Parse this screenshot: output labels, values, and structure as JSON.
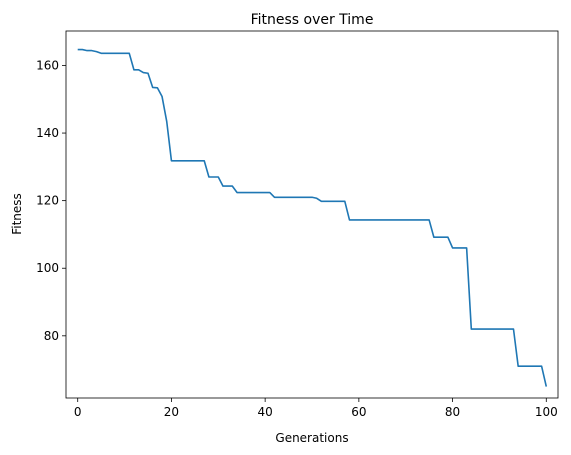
{
  "chart_data": {
    "type": "line",
    "title": "Fitness over Time",
    "xlabel": "Generations",
    "ylabel": "Fitness",
    "xlim": [
      -2.5,
      102.5
    ],
    "ylim": [
      61.6,
      170.2
    ],
    "xticks": [
      0,
      20,
      40,
      60,
      80,
      100
    ],
    "yticks": [
      80,
      100,
      120,
      140,
      160
    ],
    "grid": false,
    "line_color": "#1f77b4",
    "series": [
      {
        "x": [
          0,
          1,
          2,
          3,
          4,
          5,
          6,
          7,
          8,
          9,
          10,
          11,
          12,
          13,
          14,
          15,
          16,
          17,
          18,
          19,
          20,
          21,
          22,
          23,
          24,
          25,
          26,
          27,
          28,
          29,
          30,
          31,
          32,
          33,
          34,
          35,
          36,
          37,
          38,
          39,
          40,
          41,
          42,
          43,
          44,
          45,
          46,
          47,
          48,
          49,
          50,
          51,
          52,
          53,
          54,
          55,
          56,
          57,
          58,
          59,
          60,
          61,
          62,
          63,
          64,
          65,
          66,
          67,
          68,
          69,
          70,
          71,
          72,
          73,
          74,
          75,
          76,
          77,
          78,
          79,
          80,
          81,
          82,
          83,
          84,
          85,
          86,
          87,
          88,
          89,
          90,
          91,
          92,
          93,
          94,
          95,
          96,
          97,
          98,
          99,
          100
        ],
        "values": [
          164.7,
          164.7,
          164.4,
          164.4,
          164.1,
          163.6,
          163.6,
          163.6,
          163.6,
          163.6,
          163.6,
          163.6,
          158.7,
          158.7,
          157.9,
          157.7,
          153.5,
          153.4,
          150.8,
          143.4,
          131.8,
          131.8,
          131.8,
          131.8,
          131.8,
          131.8,
          131.8,
          131.8,
          127.0,
          127.0,
          127.0,
          124.3,
          124.3,
          124.3,
          122.4,
          122.4,
          122.4,
          122.4,
          122.4,
          122.4,
          122.4,
          122.4,
          121.0,
          121.0,
          121.0,
          121.0,
          121.0,
          121.0,
          121.0,
          121.0,
          121.0,
          120.7,
          119.8,
          119.8,
          119.8,
          119.8,
          119.8,
          119.8,
          114.3,
          114.3,
          114.3,
          114.3,
          114.3,
          114.3,
          114.3,
          114.3,
          114.3,
          114.3,
          114.3,
          114.3,
          114.3,
          114.3,
          114.3,
          114.3,
          114.3,
          114.3,
          109.2,
          109.2,
          109.2,
          109.2,
          106.0,
          106.0,
          106.0,
          106.0,
          82.0,
          82.0,
          82.0,
          82.0,
          82.0,
          82.0,
          82.0,
          82.0,
          82.0,
          82.0,
          71.0,
          71.0,
          71.0,
          71.0,
          71.0,
          71.0,
          65.0
        ]
      }
    ]
  }
}
